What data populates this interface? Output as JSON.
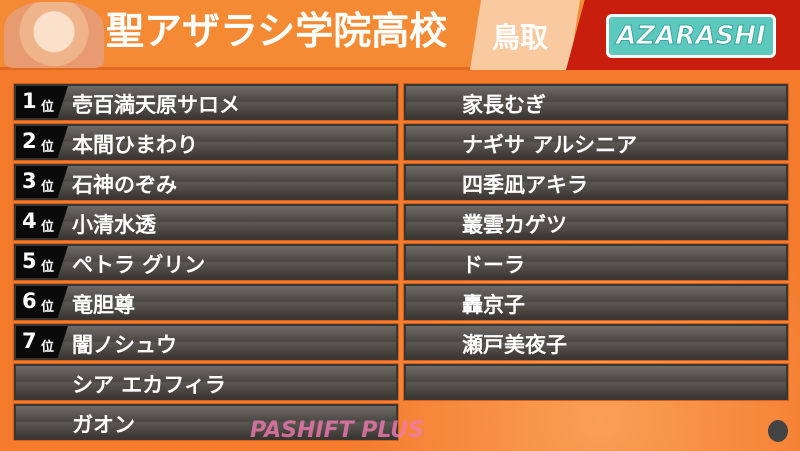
{
  "header": {
    "school": "聖アザラシ学院高校",
    "prefecture": "鳥取",
    "logo": "AZARASHI"
  },
  "rank_suffix": "位",
  "left": [
    {
      "rank": "1",
      "name": "壱百満天原サロメ"
    },
    {
      "rank": "2",
      "name": "本間ひまわり"
    },
    {
      "rank": "3",
      "name": "石神のぞみ"
    },
    {
      "rank": "4",
      "name": "小清水透"
    },
    {
      "rank": "5",
      "name": "ペトラ グリン"
    },
    {
      "rank": "6",
      "name": "竜胆尊"
    },
    {
      "rank": "7",
      "name": "闇ノシュウ"
    },
    {
      "rank": "",
      "name": "シア エカフィラ"
    },
    {
      "rank": "",
      "name": "ガオン"
    }
  ],
  "right": [
    "家長むぎ",
    "ナギサ アルシニア",
    "四季凪アキラ",
    "叢雲カゲツ",
    "ドーラ",
    "轟京子",
    "瀬戸美夜子",
    ""
  ],
  "watermark": "PASHIFT PLUS",
  "colors": {
    "header": "#f58a34",
    "accent_red": "#c81e0e",
    "logo_teal": "#5cc8be",
    "bar": "#4a4743"
  }
}
